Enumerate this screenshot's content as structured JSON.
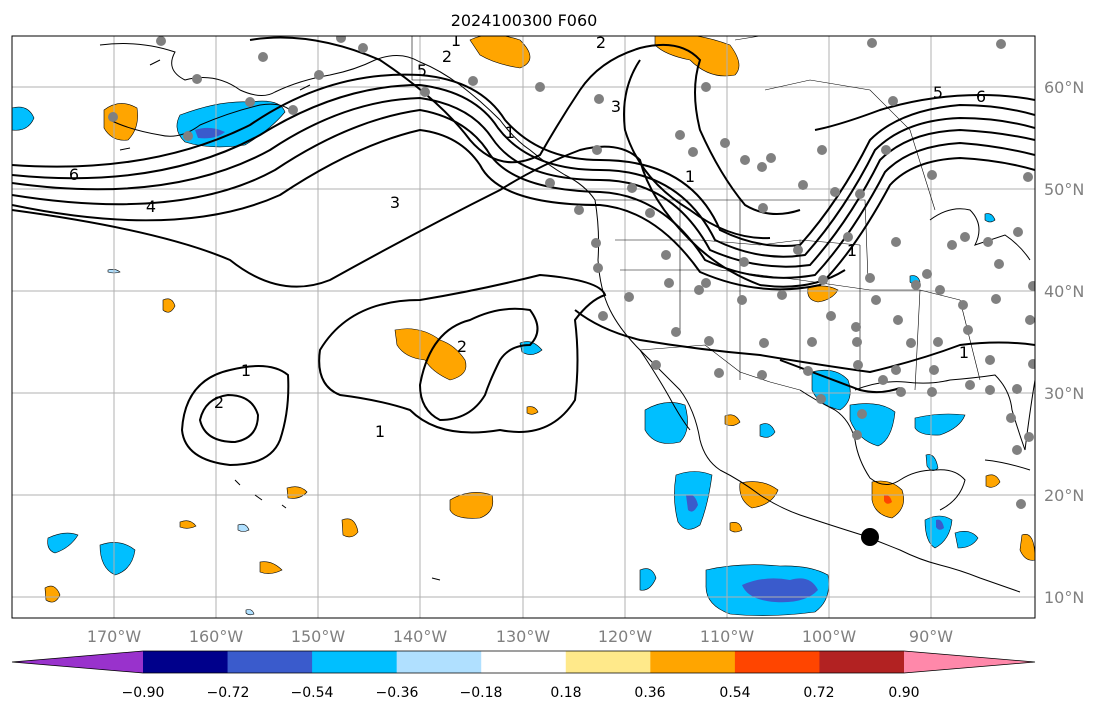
{
  "chart_data": {
    "type": "map",
    "title": "2024100300 F060",
    "lon_ticks": [
      "170°W",
      "160°W",
      "150°W",
      "140°W",
      "130°W",
      "120°W",
      "110°W",
      "100°W",
      "90°W"
    ],
    "lat_ticks": [
      "60°N",
      "50°N",
      "40°N",
      "30°N",
      "20°N",
      "10°N"
    ],
    "contour_labels": [
      "6",
      "5",
      "4",
      "3",
      "2",
      "1",
      "2",
      "1",
      "1",
      "2",
      "1",
      "1",
      "2",
      "3",
      "5",
      "6",
      "1",
      "1"
    ],
    "colorbar": {
      "ticks": [
        "−0.90",
        "−0.72",
        "−0.54",
        "−0.36",
        "−0.18",
        "0.18",
        "0.36",
        "0.54",
        "0.72",
        "0.90"
      ],
      "colors": [
        "#9932cc",
        "#00008b",
        "#3a5bcc",
        "#00bfff",
        "#b0e0ff",
        "#ffffff",
        "#ffe98a",
        "#ffa500",
        "#ff4500",
        "#b22222",
        "#ff88aa"
      ]
    },
    "gridlines": true
  }
}
